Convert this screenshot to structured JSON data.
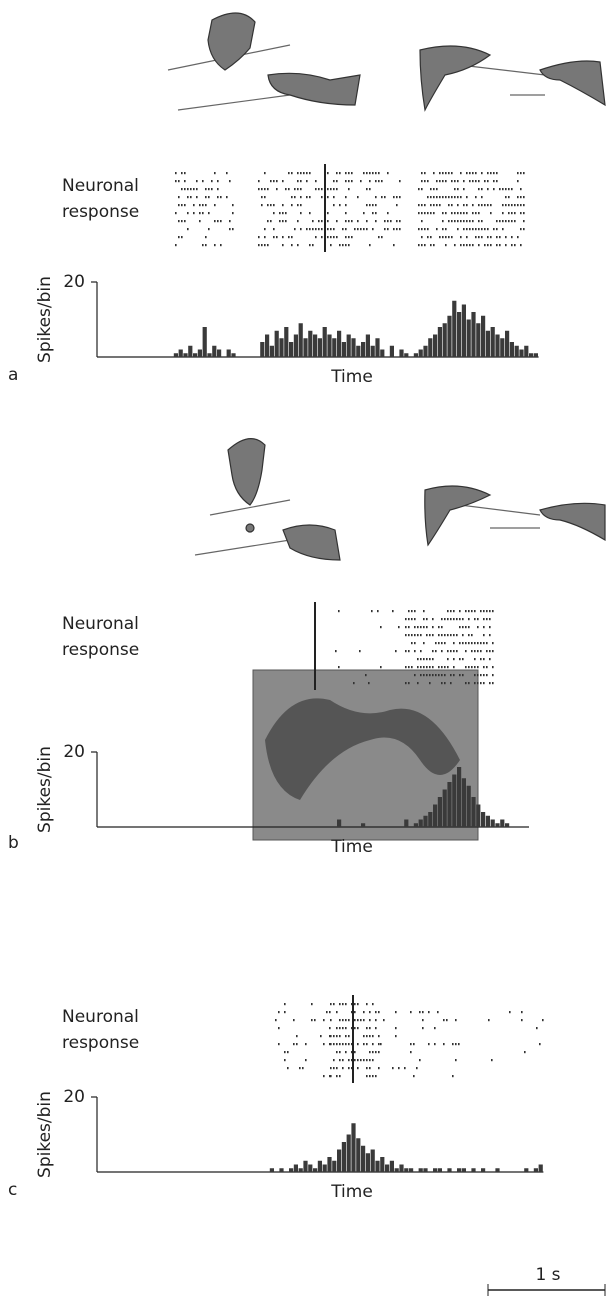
{
  "scale_bar": "1 s",
  "chart_data": [
    {
      "type": "bar",
      "panel": "a",
      "raster_label": [
        "Neuronal",
        "response"
      ],
      "ylabel": "Spikes/bin",
      "xlabel": "Time",
      "ylim": [
        0,
        20
      ],
      "yticks": [
        20
      ],
      "color": "#3a3a3a",
      "values": [
        0,
        0,
        0,
        0,
        0,
        0,
        0,
        0,
        0,
        0,
        0,
        0,
        0,
        0,
        0,
        0,
        1,
        2,
        1,
        3,
        1,
        2,
        8,
        1,
        3,
        2,
        0,
        2,
        1,
        0,
        0,
        0,
        0,
        0,
        4,
        6,
        3,
        7,
        5,
        8,
        4,
        6,
        9,
        5,
        7,
        6,
        5,
        8,
        6,
        5,
        7,
        4,
        6,
        5,
        3,
        4,
        6,
        3,
        5,
        2,
        0,
        3,
        0,
        2,
        1,
        0,
        1,
        2,
        3,
        5,
        6,
        8,
        9,
        11,
        15,
        12,
        14,
        10,
        12,
        9,
        11,
        7,
        8,
        6,
        5,
        7,
        4,
        3,
        2,
        3,
        1,
        1
      ]
    },
    {
      "type": "bar",
      "panel": "b",
      "raster_label": [
        "Neuronal",
        "response"
      ],
      "ylabel": "Spikes/bin",
      "xlabel": "Time",
      "ylim": [
        0,
        20
      ],
      "yticks": [
        20
      ],
      "color": "#3a3a3a",
      "values": [
        0,
        0,
        0,
        0,
        0,
        0,
        0,
        0,
        0,
        0,
        0,
        0,
        0,
        0,
        0,
        0,
        0,
        0,
        0,
        0,
        0,
        0,
        0,
        0,
        0,
        0,
        0,
        0,
        0,
        0,
        0,
        0,
        0,
        0,
        0,
        0,
        0,
        0,
        0,
        0,
        0,
        0,
        0,
        0,
        0,
        0,
        0,
        0,
        0,
        0,
        2,
        0,
        0,
        0,
        0,
        1,
        0,
        0,
        0,
        0,
        0,
        0,
        0,
        0,
        2,
        0,
        1,
        2,
        3,
        4,
        6,
        8,
        10,
        12,
        14,
        16,
        13,
        11,
        8,
        6,
        4,
        3,
        2,
        1,
        2,
        1,
        0,
        0,
        0,
        0
      ]
    },
    {
      "type": "bar",
      "panel": "c",
      "raster_label": [
        "Neuronal",
        "response"
      ],
      "ylabel": "Spikes/bin",
      "xlabel": "Time",
      "ylim": [
        0,
        20
      ],
      "yticks": [
        20
      ],
      "color": "#3a3a3a",
      "values": [
        0,
        0,
        0,
        0,
        0,
        0,
        0,
        0,
        0,
        0,
        0,
        0,
        0,
        0,
        0,
        0,
        0,
        0,
        0,
        0,
        0,
        0,
        0,
        0,
        0,
        0,
        0,
        0,
        0,
        0,
        0,
        0,
        0,
        0,
        0,
        0,
        1,
        0,
        1,
        0,
        1,
        2,
        1,
        3,
        2,
        1,
        3,
        2,
        4,
        3,
        6,
        8,
        10,
        13,
        9,
        7,
        5,
        6,
        3,
        4,
        2,
        3,
        1,
        2,
        1,
        1,
        0,
        1,
        1,
        0,
        1,
        1,
        0,
        1,
        0,
        1,
        1,
        0,
        1,
        0,
        1,
        0,
        0,
        1,
        0,
        0,
        0,
        0,
        0,
        1,
        0,
        1,
        2
      ]
    }
  ]
}
